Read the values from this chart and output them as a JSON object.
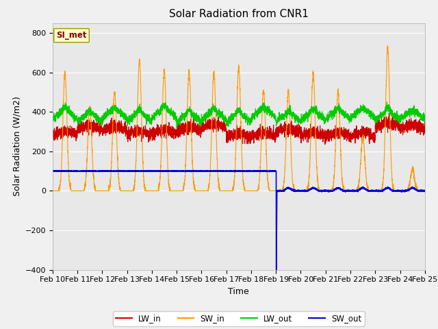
{
  "title": "Solar Radiation from CNR1",
  "xlabel": "Time",
  "ylabel": "Solar Radiation (W/m2)",
  "ylim": [
    -400,
    850
  ],
  "yticks": [
    -400,
    -200,
    0,
    200,
    400,
    600,
    800
  ],
  "date_labels": [
    "Feb 10",
    "Feb 11",
    "Feb 12",
    "Feb 13",
    "Feb 14",
    "Feb 15",
    "Feb 16",
    "Feb 17",
    "Feb 18",
    "Feb 19",
    "Feb 20",
    "Feb 21",
    "Feb 22",
    "Feb 23",
    "Feb 24",
    "Feb 25"
  ],
  "annotation_text": "SI_met",
  "legend_labels": [
    "LW_in",
    "SW_in",
    "LW_out",
    "SW_out"
  ],
  "legend_colors": [
    "#cc0000",
    "#ff9900",
    "#00cc00",
    "#0000cc"
  ],
  "line_colors": {
    "LW_in": "#cc0000",
    "SW_in": "#ff9900",
    "LW_out": "#00cc00",
    "SW_out": "#0000dd"
  },
  "fig_bg_color": "#f0f0f0",
  "plot_bg_color": "#e8e8e8",
  "grid_color": "#ffffff",
  "title_fontsize": 11,
  "axis_label_fontsize": 9,
  "tick_fontsize": 8,
  "day_peaks_sw": [
    600,
    420,
    500,
    660,
    610,
    610,
    600,
    630,
    510,
    500,
    600,
    500,
    270,
    730,
    110,
    0
  ],
  "n_days": 15,
  "pts_per_day": 288,
  "feb19_day": 9
}
